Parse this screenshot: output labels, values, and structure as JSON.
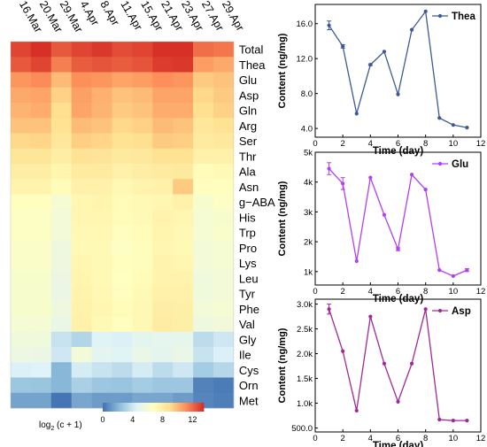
{
  "chart_data": [
    {
      "type": "heatmap",
      "x_labels": [
        "16.Mar",
        "20.Mar",
        "29.Mar",
        "4.Apr",
        "8.Apr",
        "11.Apr",
        "15.Apr",
        "21.Apr",
        "23.Apr",
        "27.Apr",
        "29.Apr"
      ],
      "y_labels": [
        "Total",
        "Thea",
        "Glu",
        "Asp",
        "Gln",
        "Arg",
        "Ser",
        "Thr",
        "Ala",
        "Asn",
        "g−ABA",
        "His",
        "Trp",
        "Pro",
        "Lys",
        "Leu",
        "Tyr",
        "Phe",
        "Val",
        "Gly",
        "Ile",
        "Cys",
        "Orn",
        "Met"
      ],
      "values": [
        [
          13.0,
          13.5,
          12.5,
          13.0,
          13.3,
          12.8,
          13.0,
          13.7,
          13.6,
          12.0,
          11.8
        ],
        [
          12.5,
          13.0,
          11.6,
          12.4,
          12.6,
          12.4,
          12.6,
          13.2,
          13.3,
          10.8,
          10.5
        ],
        [
          11.0,
          11.3,
          10.0,
          11.2,
          11.0,
          10.6,
          10.8,
          11.2,
          11.0,
          9.6,
          9.8
        ],
        [
          10.5,
          10.6,
          9.4,
          10.7,
          10.3,
          9.8,
          10.0,
          10.6,
          10.6,
          9.2,
          9.6
        ],
        [
          10.2,
          10.4,
          9.0,
          10.6,
          10.2,
          9.6,
          9.8,
          10.4,
          10.4,
          9.0,
          9.4
        ],
        [
          9.8,
          9.8,
          8.8,
          10.0,
          9.8,
          9.2,
          9.4,
          10.0,
          9.8,
          8.5,
          8.8
        ],
        [
          9.2,
          9.3,
          8.5,
          9.5,
          9.3,
          8.8,
          9.0,
          9.6,
          9.5,
          8.2,
          8.4
        ],
        [
          8.6,
          8.6,
          8.0,
          8.8,
          8.7,
          8.3,
          8.4,
          8.8,
          8.8,
          7.8,
          7.8
        ],
        [
          8.0,
          8.0,
          7.5,
          8.2,
          8.2,
          7.8,
          8.0,
          8.2,
          8.3,
          7.0,
          7.2
        ],
        [
          7.6,
          7.6,
          7.0,
          7.8,
          7.8,
          7.3,
          7.6,
          7.8,
          9.6,
          6.8,
          6.8
        ],
        [
          6.8,
          6.8,
          6.0,
          7.4,
          7.5,
          7.0,
          7.2,
          7.4,
          7.8,
          6.2,
          6.5
        ],
        [
          6.6,
          6.6,
          5.8,
          7.4,
          7.4,
          7.0,
          7.2,
          7.6,
          7.4,
          6.0,
          6.2
        ],
        [
          6.6,
          6.6,
          5.8,
          7.3,
          7.3,
          6.8,
          7.0,
          7.5,
          7.3,
          6.0,
          6.3
        ],
        [
          6.4,
          6.4,
          5.5,
          7.2,
          7.2,
          6.6,
          6.9,
          7.4,
          7.2,
          5.8,
          6.0
        ],
        [
          6.4,
          6.4,
          5.5,
          7.4,
          7.2,
          6.8,
          6.9,
          7.6,
          7.4,
          5.8,
          6.0
        ],
        [
          6.2,
          6.2,
          5.3,
          7.5,
          7.2,
          6.7,
          7.0,
          7.6,
          7.6,
          5.6,
          5.8
        ],
        [
          6.2,
          6.2,
          5.3,
          7.6,
          7.3,
          6.8,
          7.2,
          7.8,
          7.8,
          5.6,
          5.8
        ],
        [
          6.2,
          6.2,
          5.5,
          7.7,
          7.4,
          7.0,
          7.3,
          8.0,
          7.9,
          5.8,
          6.0
        ],
        [
          6.0,
          6.0,
          5.2,
          7.8,
          7.2,
          6.8,
          7.3,
          8.1,
          7.9,
          5.5,
          5.7
        ],
        [
          5.6,
          5.6,
          3.8,
          3.2,
          4.6,
          4.4,
          4.8,
          4.9,
          5.0,
          3.5,
          4.0
        ],
        [
          5.4,
          5.3,
          4.0,
          5.8,
          4.8,
          4.6,
          5.2,
          4.8,
          5.2,
          3.8,
          4.4
        ],
        [
          4.4,
          4.5,
          2.0,
          4.2,
          3.8,
          3.5,
          4.2,
          3.5,
          4.0,
          2.8,
          3.3
        ],
        [
          2.6,
          2.5,
          2.0,
          3.0,
          2.6,
          2.5,
          2.8,
          2.6,
          2.6,
          0.4,
          0.2
        ],
        [
          1.4,
          1.4,
          0.0,
          1.5,
          1.2,
          1.2,
          1.5,
          1.5,
          1.2,
          0.5,
          0.3
        ]
      ],
      "colorbar": {
        "label": "log",
        "label_sub": "2",
        "label_tail": " (c + 1)",
        "ticks": [
          0,
          4,
          8,
          12
        ],
        "range": [
          0,
          13.5
        ]
      },
      "colors": [
        "#4575b4",
        "#91bfdb",
        "#e0f3f8",
        "#ffffbf",
        "#fee090",
        "#fc8d59",
        "#d73027"
      ]
    },
    {
      "type": "line",
      "legend": "Thea",
      "xlabel": "Time (day)",
      "ylabel": "Content (ng/mg)",
      "x": [
        1,
        2,
        3,
        4,
        5,
        6,
        7,
        8,
        9,
        10,
        11
      ],
      "values": [
        15.8,
        13.4,
        5.7,
        11.3,
        12.8,
        7.9,
        15.3,
        17.4,
        5.2,
        4.4,
        4.1
      ],
      "err": [
        0.5,
        0.2,
        0,
        0.1,
        0,
        0,
        0,
        0,
        0,
        0,
        0
      ],
      "xlim": [
        0,
        12
      ],
      "ylim": [
        3,
        18.2
      ],
      "yticks": [
        4,
        8,
        12,
        16
      ],
      "ytick_labels": [
        "4.0",
        "8.0",
        "12.0",
        "16.0"
      ],
      "xticks": [
        0,
        2,
        4,
        6,
        8,
        10,
        12
      ],
      "color": "#3d5a96"
    },
    {
      "type": "line",
      "legend": "Glu",
      "xlabel": "Time (day)",
      "ylabel": "Content (ng/mg)",
      "x": [
        1,
        2,
        3,
        4,
        5,
        6,
        7,
        8,
        9,
        10,
        11
      ],
      "values": [
        4.45,
        3.95,
        1.35,
        4.15,
        2.9,
        1.75,
        4.25,
        3.75,
        1.05,
        0.85,
        1.05
      ],
      "err": [
        0.2,
        0.2,
        0,
        0,
        0,
        0.05,
        0,
        0,
        0,
        0,
        0.05
      ],
      "xlim": [
        0,
        12
      ],
      "ylim": [
        0.55,
        5.0
      ],
      "yticks": [
        1,
        2,
        3,
        4,
        5
      ],
      "ytick_labels": [
        "1k",
        "2k",
        "3k",
        "4k",
        "5k"
      ],
      "xticks": [
        0,
        2,
        4,
        6,
        8,
        10,
        12
      ],
      "color": "#b43ff0"
    },
    {
      "type": "line",
      "legend": "Asp",
      "xlabel": "Time (day)",
      "ylabel": "Content (ng/mg)",
      "x": [
        1,
        2,
        3,
        4,
        5,
        6,
        7,
        8,
        9,
        10,
        11
      ],
      "values": [
        2.9,
        2.05,
        0.85,
        2.75,
        1.8,
        1.03,
        1.8,
        2.9,
        0.67,
        0.65,
        0.65
      ],
      "err": [
        0.1,
        0,
        0,
        0,
        0,
        0,
        0,
        0,
        0,
        0,
        0
      ],
      "xlim": [
        0,
        12
      ],
      "ylim": [
        0.42,
        3.1
      ],
      "yticks": [
        0.5,
        1.0,
        1.5,
        2.0,
        2.5,
        3.0
      ],
      "ytick_labels": [
        "500.0",
        "1.0k",
        "1.5k",
        "2.0k",
        "2.5k",
        "3.0k"
      ],
      "xticks": [
        0,
        2,
        4,
        6,
        8,
        10,
        12
      ],
      "color": "#a0299a"
    }
  ]
}
